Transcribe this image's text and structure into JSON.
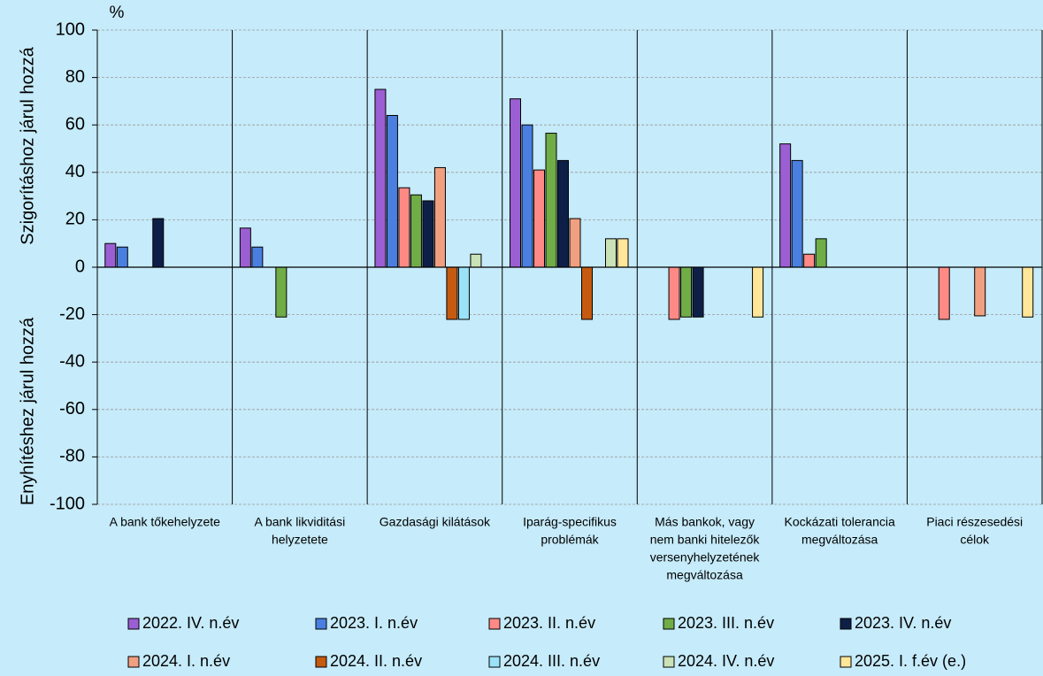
{
  "chart_data": {
    "type": "bar",
    "y_unit": "%",
    "y_label_upper": "Szigorításhoz járul hozzá",
    "y_label_lower": "Enyhítéshez járul hozzá",
    "categories": [
      [
        "A bank tőkehelyzete"
      ],
      [
        "A bank likviditási",
        "helyzetete"
      ],
      [
        "Gazdasági kilátások"
      ],
      [
        "Iparág-specifikus",
        "problémák"
      ],
      [
        "Más bankok, vagy",
        "nem banki hitelezők",
        "versenyhelyzetének",
        "megváltozása"
      ],
      [
        "Kockázati tolerancia",
        "megváltozása"
      ],
      [
        "Piaci részesedési",
        "célok"
      ]
    ],
    "series": [
      {
        "name": "2022. IV. n.év",
        "color": "#9b5fd3",
        "values": [
          10,
          16.5,
          75,
          71,
          null,
          52,
          null
        ]
      },
      {
        "name": "2023. I. n.év",
        "color": "#4a7fe0",
        "values": [
          8.5,
          8.5,
          64,
          60,
          null,
          45,
          null
        ]
      },
      {
        "name": "2023. II. n.év",
        "color": "#ff8a85",
        "values": [
          null,
          null,
          33.5,
          41,
          -22,
          5.5,
          -22
        ]
      },
      {
        "name": "2023. III. n.év",
        "color": "#70ad47",
        "values": [
          null,
          -21,
          30.5,
          56.5,
          -21,
          12,
          null
        ]
      },
      {
        "name": "2023. IV. n.év",
        "color": "#0e1f47",
        "values": [
          20.5,
          null,
          28,
          45,
          -21,
          null,
          null
        ]
      },
      {
        "name": "2024. I. n.év",
        "color": "#f0a080",
        "values": [
          null,
          null,
          42,
          20.5,
          null,
          null,
          -20.5
        ]
      },
      {
        "name": "2024. II. n.év",
        "color": "#c55a11",
        "values": [
          null,
          null,
          -22,
          -22,
          null,
          null,
          null
        ]
      },
      {
        "name": "2024. III. n.év",
        "color": "#9be2f8",
        "values": [
          null,
          null,
          -22,
          null,
          null,
          null,
          null
        ]
      },
      {
        "name": "2024. IV. n.év",
        "color": "#c9e2b6",
        "values": [
          null,
          null,
          5.5,
          12,
          null,
          null,
          null
        ]
      },
      {
        "name": "2025. I. f.év (e.)",
        "color": "#ffe699",
        "values": [
          null,
          null,
          null,
          12,
          -21,
          null,
          -21
        ]
      }
    ],
    "ylim": [
      -100,
      100
    ],
    "yticks": [
      -100,
      -80,
      -60,
      -40,
      -20,
      0,
      20,
      40,
      60,
      80,
      100
    ],
    "grid": true
  }
}
